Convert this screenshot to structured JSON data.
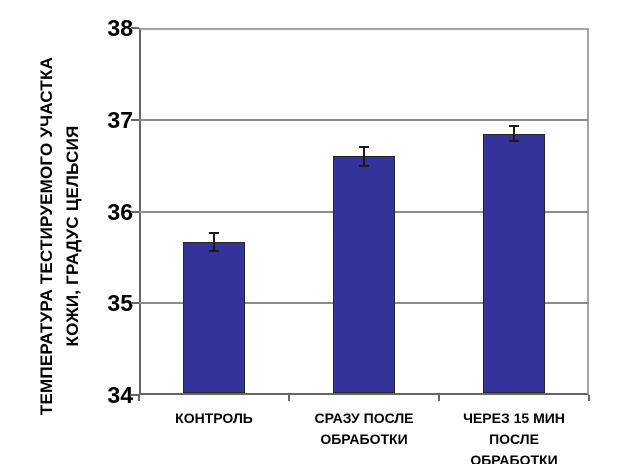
{
  "chart_data": {
    "type": "bar",
    "title": "",
    "ylabel": "ТЕМПЕРАТУРА ТЕСТИРУЕМОГО УЧАСТКА\nКОЖИ, ГРАДУС ЦЕЛЬСИЯ",
    "xlabel": "",
    "categories": [
      "КОНТРОЛЬ",
      "СРАЗУ ПОСЛЕ\nОБРАБОТКИ",
      "ЧЕРЕЗ 15 МИН ПОСЛЕ\nОБРАБОТКИ"
    ],
    "values": [
      35.67,
      36.6,
      36.85
    ],
    "errors": [
      0.1,
      0.1,
      0.08
    ],
    "ylim": [
      34,
      38
    ],
    "yticks": [
      34,
      35,
      36,
      37,
      38
    ],
    "grid": true,
    "legend": false,
    "bar_color": "#333399"
  },
  "colors": {
    "bar_fill": "#333399",
    "bar_border": "#262626",
    "error_bar": "#1a1a1a",
    "gridline": "#8c8c8c",
    "axis": "#666666",
    "frame": "#a3a3a3",
    "background": "#ffffff",
    "text": "#000000"
  }
}
